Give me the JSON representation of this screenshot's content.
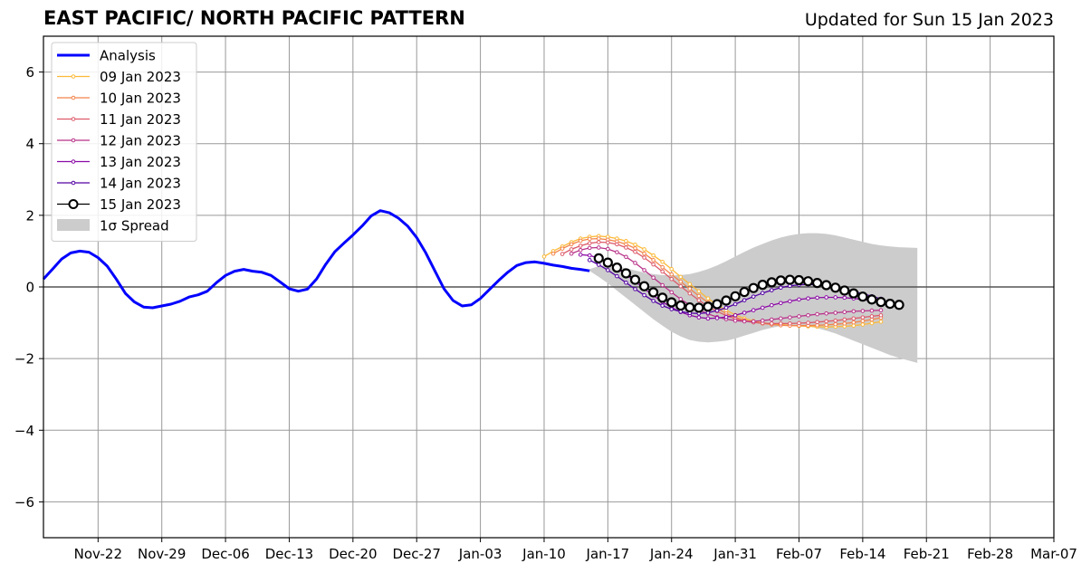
{
  "chart_data": {
    "type": "line",
    "title": "EAST PACIFIC/ NORTH PACIFIC PATTERN",
    "subtitle": "Updated for Sun 15 Jan 2023",
    "xlabel": "",
    "ylabel": "",
    "x_range_days": [
      "2022-11-16",
      "2023-03-07"
    ],
    "ylim": [
      -7,
      7
    ],
    "yticks": [
      -6,
      -4,
      -2,
      0,
      2,
      4,
      6
    ],
    "ytick_labels": [
      "−6",
      "−4",
      "−2",
      "0",
      "2",
      "4",
      "6"
    ],
    "xticks": [
      "2022-11-22",
      "2022-11-29",
      "2022-12-06",
      "2022-12-13",
      "2022-12-20",
      "2022-12-27",
      "2023-01-03",
      "2023-01-10",
      "2023-01-17",
      "2023-01-24",
      "2023-01-31",
      "2023-02-07",
      "2023-02-14",
      "2023-02-21",
      "2023-02-28",
      "2023-03-07"
    ],
    "xtick_labels": [
      "Nov-22",
      "Nov-29",
      "Dec-06",
      "Dec-13",
      "Dec-20",
      "Dec-27",
      "Jan-03",
      "Jan-10",
      "Jan-17",
      "Jan-24",
      "Jan-31",
      "Feb-07",
      "Feb-14",
      "Feb-21",
      "Feb-28",
      "Mar-07"
    ],
    "grid": true,
    "legend_position": "top-left",
    "analysis": {
      "name": "Analysis",
      "color": "#0000ff",
      "start": "2022-11-16",
      "values": [
        0.22,
        0.5,
        0.78,
        0.95,
        1.0,
        0.97,
        0.82,
        0.58,
        0.22,
        -0.18,
        -0.42,
        -0.56,
        -0.58,
        -0.53,
        -0.48,
        -0.4,
        -0.28,
        -0.22,
        -0.12,
        0.12,
        0.32,
        0.44,
        0.49,
        0.44,
        0.41,
        0.32,
        0.14,
        -0.05,
        -0.12,
        -0.06,
        0.22,
        0.63,
        0.98,
        1.22,
        1.45,
        1.7,
        1.98,
        2.13,
        2.07,
        1.92,
        1.7,
        1.38,
        0.95,
        0.45,
        -0.05,
        -0.38,
        -0.53,
        -0.5,
        -0.32,
        -0.07,
        0.18,
        0.41,
        0.6,
        0.68,
        0.7,
        0.66,
        0.61,
        0.57,
        0.52,
        0.49,
        0.45
      ]
    },
    "spread": {
      "name": "1σ Spread",
      "color": "#cccccc",
      "start": "2023-01-15",
      "upper": [
        0.5,
        0.58,
        0.62,
        0.58,
        0.52,
        0.46,
        0.4,
        0.36,
        0.33,
        0.32,
        0.33,
        0.36,
        0.42,
        0.5,
        0.6,
        0.72,
        0.85,
        0.98,
        1.1,
        1.2,
        1.3,
        1.38,
        1.44,
        1.48,
        1.5,
        1.5,
        1.48,
        1.44,
        1.38,
        1.32,
        1.26,
        1.2,
        1.16,
        1.13,
        1.11,
        1.1,
        1.09
      ],
      "lower": [
        0.45,
        0.28,
        0.1,
        -0.1,
        -0.3,
        -0.5,
        -0.7,
        -0.9,
        -1.08,
        -1.25,
        -1.38,
        -1.48,
        -1.53,
        -1.55,
        -1.53,
        -1.5,
        -1.44,
        -1.36,
        -1.28,
        -1.2,
        -1.14,
        -1.09,
        -1.07,
        -1.07,
        -1.1,
        -1.15,
        -1.22,
        -1.3,
        -1.4,
        -1.5,
        -1.6,
        -1.7,
        -1.8,
        -1.9,
        -1.98,
        -2.05,
        -2.12
      ]
    },
    "forecasts": [
      {
        "name": "09 Jan 2023",
        "color": "#fcb938",
        "start": "2023-01-10",
        "values": [
          0.85,
          1.0,
          1.13,
          1.25,
          1.35,
          1.4,
          1.42,
          1.4,
          1.35,
          1.28,
          1.18,
          1.05,
          0.88,
          0.7,
          0.5,
          0.28,
          0.08,
          -0.12,
          -0.32,
          -0.5,
          -0.65,
          -0.78,
          -0.88,
          -0.95,
          -1.0,
          -1.03,
          -1.05,
          -1.07,
          -1.09,
          -1.1,
          -1.11,
          -1.12,
          -1.11,
          -1.1,
          -1.08,
          -1.05,
          -1.01,
          -0.97
        ]
      },
      {
        "name": "10 Jan 2023",
        "color": "#f3844b",
        "start": "2023-01-11",
        "values": [
          0.93,
          1.07,
          1.19,
          1.29,
          1.34,
          1.35,
          1.32,
          1.27,
          1.19,
          1.08,
          0.93,
          0.75,
          0.55,
          0.35,
          0.15,
          -0.05,
          -0.25,
          -0.43,
          -0.6,
          -0.74,
          -0.85,
          -0.93,
          -0.98,
          -1.02,
          -1.05,
          -1.07,
          -1.08,
          -1.08,
          -1.08,
          -1.07,
          -1.06,
          -1.04,
          -1.02,
          -0.99,
          -0.95,
          -0.91,
          -0.86
        ]
      },
      {
        "name": "11 Jan 2023",
        "color": "#dd5a6a",
        "start": "2023-01-12",
        "values": [
          0.92,
          1.05,
          1.15,
          1.22,
          1.25,
          1.24,
          1.19,
          1.1,
          0.98,
          0.82,
          0.63,
          0.43,
          0.22,
          0.02,
          -0.18,
          -0.37,
          -0.54,
          -0.68,
          -0.8,
          -0.89,
          -0.95,
          -0.99,
          -1.01,
          -1.02,
          -1.02,
          -1.02,
          -1.01,
          -1.0,
          -0.98,
          -0.96,
          -0.94,
          -0.91,
          -0.88,
          -0.85,
          -0.82,
          -0.79
        ]
      },
      {
        "name": "12 Jan 2023",
        "color": "#b83289",
        "start": "2023-01-13",
        "values": [
          0.93,
          1.03,
          1.09,
          1.1,
          1.06,
          0.97,
          0.84,
          0.67,
          0.47,
          0.26,
          0.05,
          -0.15,
          -0.34,
          -0.5,
          -0.64,
          -0.75,
          -0.84,
          -0.9,
          -0.94,
          -0.96,
          -0.96,
          -0.94,
          -0.91,
          -0.88,
          -0.85,
          -0.82,
          -0.79,
          -0.76,
          -0.74,
          -0.72,
          -0.7,
          -0.68,
          -0.67,
          -0.66,
          -0.65
        ]
      },
      {
        "name": "13 Jan 2023",
        "color": "#8b0aa5",
        "start": "2023-01-14",
        "values": [
          0.9,
          0.88,
          0.8,
          0.68,
          0.52,
          0.34,
          0.15,
          -0.05,
          -0.24,
          -0.42,
          -0.57,
          -0.7,
          -0.79,
          -0.85,
          -0.88,
          -0.87,
          -0.84,
          -0.79,
          -0.72,
          -0.65,
          -0.58,
          -0.51,
          -0.45,
          -0.4,
          -0.35,
          -0.32,
          -0.3,
          -0.29,
          -0.29,
          -0.3,
          -0.32,
          -0.35,
          -0.39,
          -0.43,
          -0.48
        ]
      },
      {
        "name": "14 Jan 2023",
        "color": "#5302a3",
        "start": "2023-01-15",
        "values": [
          0.75,
          0.62,
          0.47,
          0.3,
          0.12,
          -0.06,
          -0.23,
          -0.39,
          -0.52,
          -0.62,
          -0.69,
          -0.73,
          -0.74,
          -0.72,
          -0.66,
          -0.58,
          -0.48,
          -0.37,
          -0.27,
          -0.17,
          -0.09,
          -0.02,
          0.03,
          0.06,
          0.07,
          0.06,
          0.03,
          -0.01,
          -0.06,
          -0.12,
          -0.19,
          -0.26,
          -0.33
        ]
      },
      {
        "name": "15 Jan 2023",
        "color": "#000000",
        "markers": "open-circle",
        "start": "2023-01-16",
        "values": [
          0.8,
          0.68,
          0.54,
          0.38,
          0.2,
          0.02,
          -0.15,
          -0.3,
          -0.43,
          -0.52,
          -0.57,
          -0.58,
          -0.55,
          -0.48,
          -0.38,
          -0.26,
          -0.14,
          -0.03,
          0.06,
          0.13,
          0.18,
          0.2,
          0.19,
          0.16,
          0.11,
          0.05,
          -0.02,
          -0.1,
          -0.18,
          -0.27,
          -0.35,
          -0.42,
          -0.47,
          -0.5
        ]
      }
    ]
  }
}
